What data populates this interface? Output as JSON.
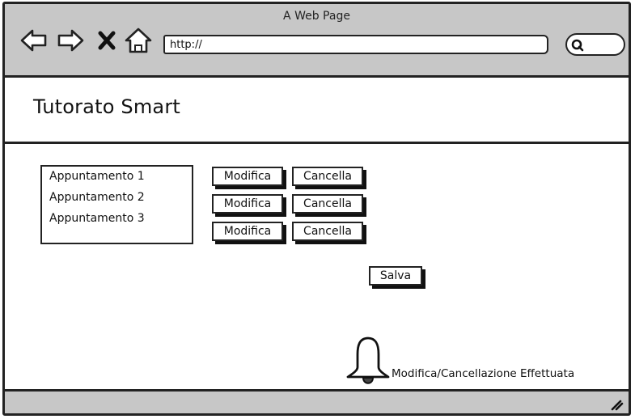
{
  "window": {
    "title": "A Web Page"
  },
  "browser": {
    "url": "http://",
    "icons": [
      "back-arrow-icon",
      "forward-arrow-icon",
      "close-x-icon",
      "home-icon",
      "search-icon",
      "resize-grip-icon"
    ]
  },
  "app": {
    "title": "Tutorato Smart"
  },
  "appointments": [
    {
      "label": "Appuntamento 1",
      "edit_label": "Modifica",
      "delete_label": "Cancella"
    },
    {
      "label": "Appuntamento 2",
      "edit_label": "Modifica",
      "delete_label": "Cancella"
    },
    {
      "label": "Appuntamento 3",
      "edit_label": "Modifica",
      "delete_label": "Cancella"
    }
  ],
  "actions": {
    "save_label": "Salva"
  },
  "notification": {
    "icon": "bell-icon",
    "text": "Modifica/Cancellazione Effettuata"
  }
}
